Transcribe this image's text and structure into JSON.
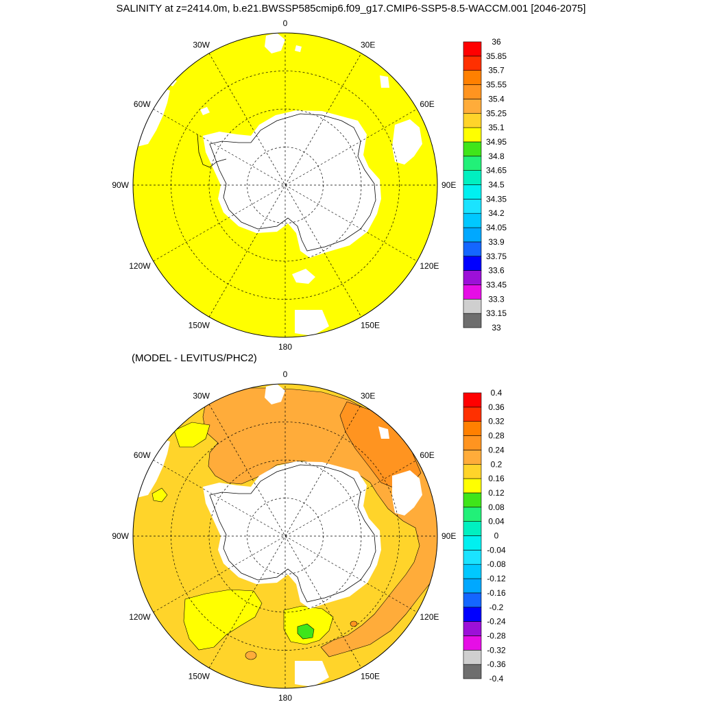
{
  "title": "SALINITY at z=2414.0m, b.e21.BWSSP585cmip6.f09_g17.CMIP6-SSP5-8.5-WACCM.001 [2046-2075]",
  "subtitle": "(MODEL - LEVITUS/PHC2)",
  "longitude_labels": [
    "0",
    "30E",
    "60E",
    "90E",
    "120E",
    "150E",
    "180",
    "150W",
    "120W",
    "90W",
    "60W",
    "30W"
  ],
  "colors": {
    "land": "#ffffff",
    "coast": "#000000",
    "top_field": "#ffff00",
    "diff_main": "#ffd42a",
    "diff_mid": "#ffac3a",
    "diff_high": "#ff9420",
    "diff_low": "#ffff00",
    "diff_green": "#3fe51a"
  },
  "palette": [
    "#6e6e6e",
    "#cfcfcf",
    "#e60ee6",
    "#9c10d8",
    "#0000ff",
    "#1466ff",
    "#00a8ff",
    "#00c8ff",
    "#1be3ff",
    "#00f0f0",
    "#00f0c0",
    "#22f078",
    "#3fe51a",
    "#ffff00",
    "#ffd42a",
    "#ffac3a",
    "#ff9420",
    "#ff8000",
    "#ff3000",
    "#ff0000",
    "#d00000"
  ],
  "colorbars": [
    {
      "labels": [
        "33",
        "33.15",
        "33.3",
        "33.45",
        "33.6",
        "33.75",
        "33.9",
        "34.05",
        "34.2",
        "34.35",
        "34.5",
        "34.65",
        "34.8",
        "34.95",
        "35.1",
        "35.25",
        "35.4",
        "35.55",
        "35.7",
        "35.85",
        "36"
      ]
    },
    {
      "labels": [
        "-0.4",
        "-0.36",
        "-0.32",
        "-0.28",
        "-0.24",
        "-0.2",
        "-0.16",
        "-0.12",
        "-0.08",
        "-0.04",
        "0",
        "0.04",
        "0.08",
        "0.12",
        "0.16",
        "0.2",
        "0.24",
        "0.28",
        "0.32",
        "0.36",
        "0.4"
      ]
    }
  ]
}
